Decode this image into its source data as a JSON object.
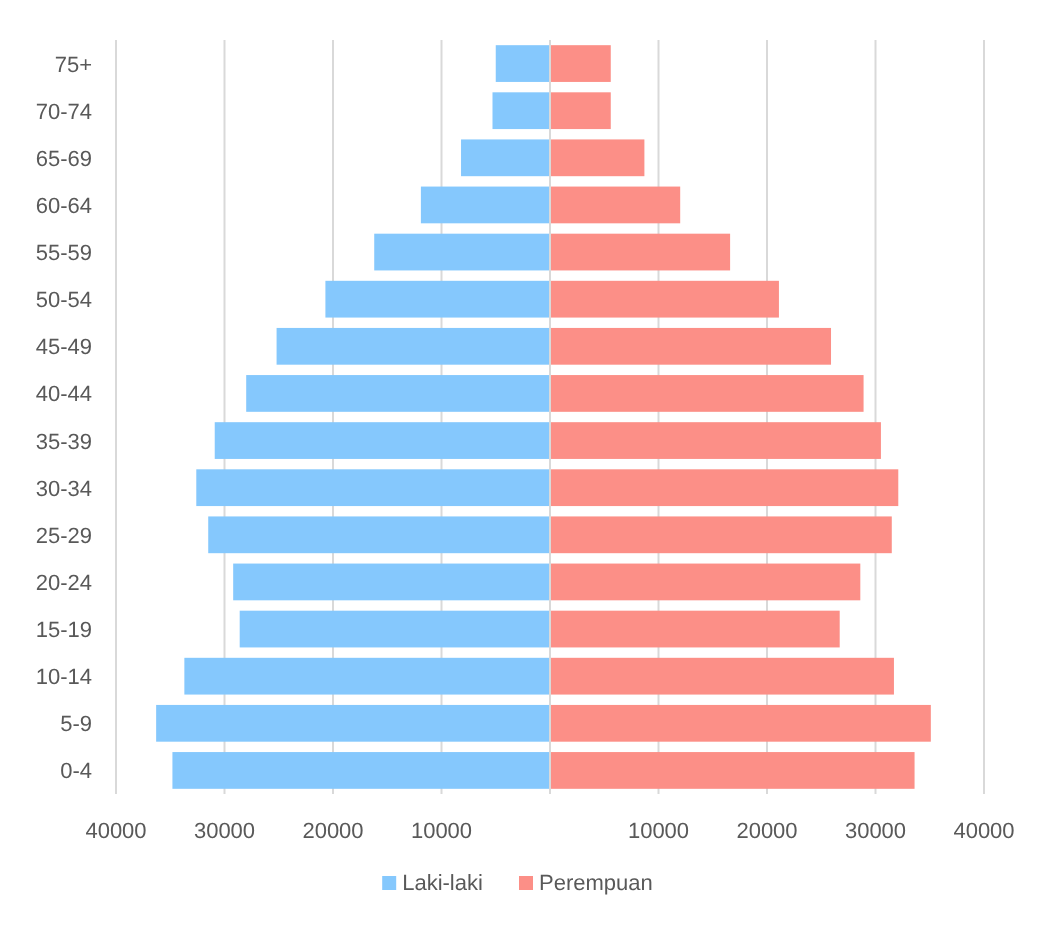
{
  "chart_data": {
    "type": "bar",
    "orientation": "horizontal",
    "stacked": true,
    "categories": [
      "75+",
      "70-74",
      "65-69",
      "60-64",
      "55-59",
      "50-54",
      "45-49",
      "40-44",
      "35-39",
      "30-34",
      "25-29",
      "20-24",
      "15-19",
      "10-14",
      "5-9",
      "0-4"
    ],
    "series": [
      {
        "name": "Laki-laki",
        "color": "#85c8fd",
        "values": [
          -5000,
          -5300,
          -8200,
          -11900,
          -16200,
          -20700,
          -25200,
          -28000,
          -30900,
          -32600,
          -31500,
          -29200,
          -28600,
          -33700,
          -36300,
          -34800
        ]
      },
      {
        "name": "Perempuan",
        "color": "#fc8f87",
        "values": [
          5600,
          5600,
          8700,
          12000,
          16600,
          21100,
          25900,
          28900,
          30500,
          32100,
          31500,
          28600,
          26700,
          31700,
          35100,
          33600
        ]
      }
    ],
    "xlim": [
      -40000,
      40000
    ],
    "xticks": [
      {
        "value": -40000,
        "label": "40000"
      },
      {
        "value": -30000,
        "label": "30000"
      },
      {
        "value": -20000,
        "label": "20000"
      },
      {
        "value": -10000,
        "label": "10000"
      },
      {
        "value": 0,
        "label": null
      },
      10000,
      20000,
      30000,
      40000
    ],
    "grid": "x",
    "legend": "bottom"
  }
}
